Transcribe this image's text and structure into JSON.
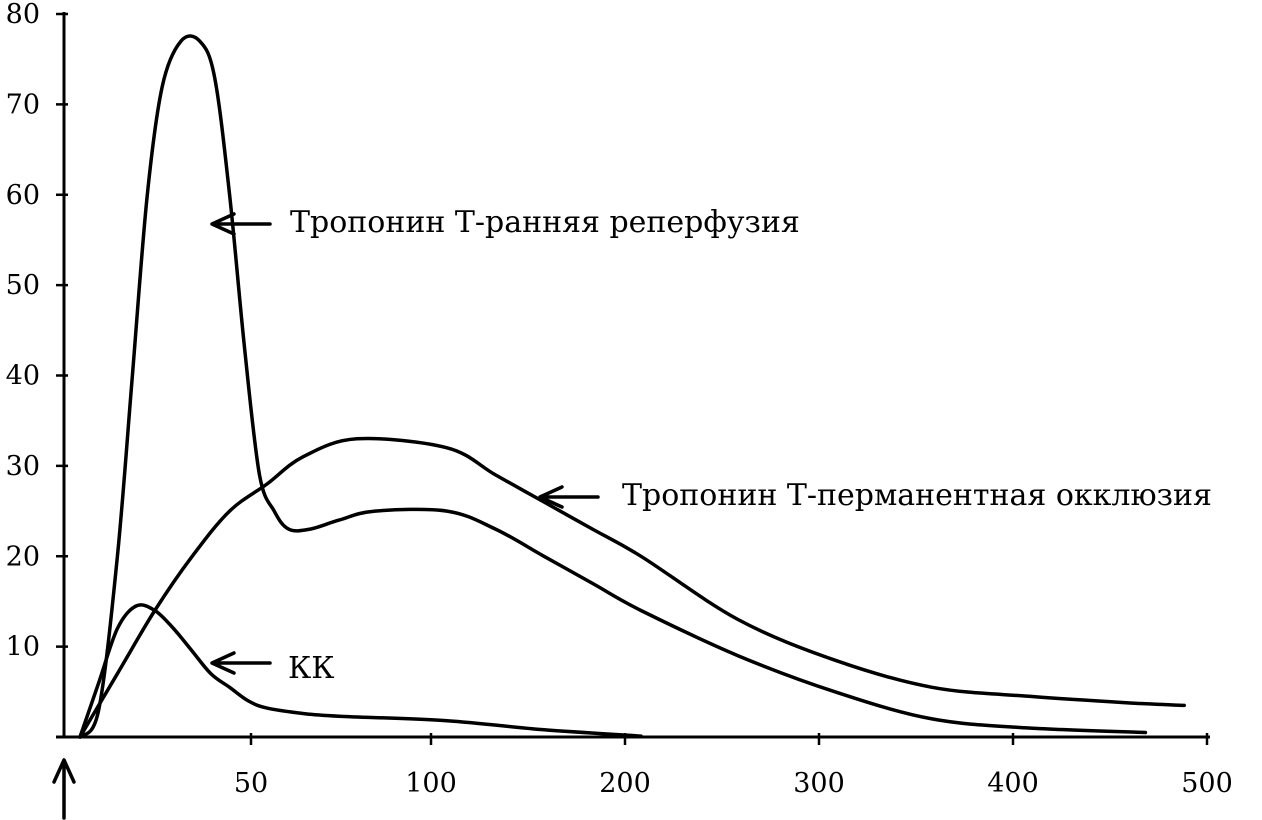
{
  "chart_data": {
    "type": "line",
    "title": "",
    "xlabel": "",
    "ylabel": "",
    "grid": false,
    "legend": "none",
    "xlim": [
      0,
      500
    ],
    "ylim": [
      0,
      80
    ],
    "x_ticks": [
      {
        "value": 50,
        "label": "50"
      },
      {
        "value": 100,
        "label": "100"
      },
      {
        "value": 200,
        "label": "200"
      },
      {
        "value": 300,
        "label": "300"
      },
      {
        "value": 400,
        "label": "400"
      },
      {
        "value": 500,
        "label": "500"
      }
    ],
    "y_ticks": [
      {
        "value": 10,
        "label": "10"
      },
      {
        "value": 20,
        "label": "20"
      },
      {
        "value": 30,
        "label": "30"
      },
      {
        "value": 40,
        "label": "40"
      },
      {
        "value": 50,
        "label": "50"
      },
      {
        "value": 60,
        "label": "60"
      },
      {
        "value": 70,
        "label": "70"
      },
      {
        "value": 80,
        "label": "80"
      }
    ],
    "series": [
      {
        "name": "Тропонин Т-ранняя реперфузия",
        "points": [
          [
            0,
            0
          ],
          [
            5,
            3
          ],
          [
            10,
            20
          ],
          [
            14,
            40
          ],
          [
            18,
            60
          ],
          [
            22,
            72
          ],
          [
            27,
            77
          ],
          [
            32,
            77
          ],
          [
            36,
            73
          ],
          [
            40,
            60
          ],
          [
            44,
            43
          ],
          [
            48,
            29
          ],
          [
            52,
            25
          ],
          [
            56,
            23
          ],
          [
            62,
            23
          ],
          [
            70,
            24
          ],
          [
            80,
            25
          ],
          [
            100,
            25
          ],
          [
            125,
            23
          ],
          [
            150,
            20
          ],
          [
            175,
            17
          ],
          [
            200,
            14
          ],
          [
            250,
            9
          ],
          [
            300,
            5
          ],
          [
            350,
            2
          ],
          [
            400,
            1
          ],
          [
            460,
            0.5
          ]
        ]
      },
      {
        "name": "Тропонин Т-перманентная окклюзия",
        "points": [
          [
            0,
            0
          ],
          [
            10,
            7
          ],
          [
            20,
            14
          ],
          [
            30,
            20
          ],
          [
            40,
            25
          ],
          [
            50,
            28
          ],
          [
            60,
            31
          ],
          [
            75,
            33
          ],
          [
            100,
            32
          ],
          [
            125,
            29
          ],
          [
            150,
            26
          ],
          [
            175,
            23
          ],
          [
            200,
            20
          ],
          [
            250,
            13
          ],
          [
            300,
            8.5
          ],
          [
            350,
            5.5
          ],
          [
            400,
            4.5
          ],
          [
            450,
            3.8
          ],
          [
            480,
            3.5
          ]
        ]
      },
      {
        "name": "КК",
        "points": [
          [
            0,
            0
          ],
          [
            5,
            6
          ],
          [
            10,
            12
          ],
          [
            15,
            14.5
          ],
          [
            20,
            14
          ],
          [
            25,
            12
          ],
          [
            30,
            9.5
          ],
          [
            35,
            7
          ],
          [
            40,
            5.5
          ],
          [
            45,
            4
          ],
          [
            50,
            3.2
          ],
          [
            60,
            2.6
          ],
          [
            70,
            2.3
          ],
          [
            100,
            1.8
          ],
          [
            150,
            0.8
          ],
          [
            200,
            0.1
          ]
        ]
      }
    ],
    "annotations": [
      {
        "text": "Тропонин Т-ранняя реперфузия",
        "series": 0
      },
      {
        "text": "Тропонин Т-перманентная окклюзия",
        "series": 1
      },
      {
        "text": "КК",
        "series": 2
      }
    ]
  }
}
